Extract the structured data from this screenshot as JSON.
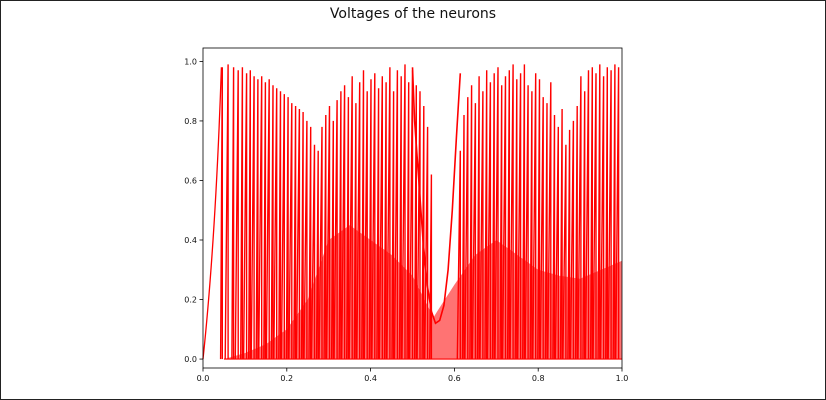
{
  "chart_data": {
    "type": "line",
    "title": "Voltages of the neurons",
    "xlabel": "",
    "ylabel": "",
    "xlim": [
      0.0,
      1.0
    ],
    "ylim": [
      -0.03,
      1.045
    ],
    "grid": false,
    "legend": "none",
    "x_ticks": [
      "0.0",
      "0.2",
      "0.4",
      "0.6",
      "0.8",
      "1.0"
    ],
    "y_ticks": [
      "0.0",
      "0.2",
      "0.4",
      "0.6",
      "0.8",
      "1.0"
    ],
    "series": [
      {
        "color": "#ff0000",
        "spike_times": [
          0.046,
          0.06,
          0.073,
          0.084,
          0.094,
          0.104,
          0.113,
          0.122,
          0.131,
          0.14,
          0.149,
          0.158,
          0.167,
          0.176,
          0.185,
          0.194,
          0.203,
          0.212,
          0.221,
          0.23,
          0.239,
          0.248,
          0.257,
          0.266,
          0.275,
          0.284,
          0.293,
          0.302,
          0.311,
          0.32,
          0.329,
          0.338,
          0.347,
          0.356,
          0.365,
          0.374,
          0.383,
          0.392,
          0.401,
          0.41,
          0.419,
          0.428,
          0.437,
          0.446,
          0.455,
          0.464,
          0.473,
          0.482,
          0.491,
          0.5,
          0.509,
          0.518,
          0.527,
          0.536,
          0.545,
          0.614,
          0.623,
          0.632,
          0.641,
          0.65,
          0.659,
          0.668,
          0.677,
          0.686,
          0.695,
          0.704,
          0.713,
          0.722,
          0.731,
          0.74,
          0.749,
          0.758,
          0.767,
          0.776,
          0.785,
          0.794,
          0.803,
          0.812,
          0.821,
          0.83,
          0.839,
          0.848,
          0.857,
          0.866,
          0.875,
          0.884,
          0.893,
          0.902,
          0.911,
          0.92,
          0.929,
          0.938,
          0.947,
          0.956,
          0.965,
          0.974,
          0.983,
          0.992
        ],
        "spike_peaks": [
          0.98,
          0.99,
          0.98,
          0.97,
          0.98,
          0.96,
          0.97,
          0.95,
          0.94,
          0.95,
          0.93,
          0.94,
          0.92,
          0.91,
          0.9,
          0.89,
          0.88,
          0.86,
          0.85,
          0.84,
          0.83,
          0.8,
          0.78,
          0.72,
          0.7,
          0.78,
          0.82,
          0.85,
          0.8,
          0.87,
          0.9,
          0.92,
          0.88,
          0.95,
          0.86,
          0.93,
          0.97,
          0.9,
          0.94,
          0.96,
          0.91,
          0.95,
          0.93,
          0.98,
          0.9,
          0.97,
          0.95,
          0.99,
          0.93,
          0.97,
          0.92,
          0.9,
          0.85,
          0.78,
          0.62,
          0.7,
          0.82,
          0.88,
          0.92,
          0.86,
          0.95,
          0.9,
          0.97,
          0.93,
          0.96,
          0.98,
          0.92,
          0.95,
          0.97,
          0.99,
          0.94,
          0.96,
          0.99,
          0.92,
          0.9,
          0.96,
          0.94,
          0.88,
          0.86,
          0.93,
          0.82,
          0.78,
          0.84,
          0.72,
          0.77,
          0.8,
          0.85,
          0.95,
          0.9,
          0.97,
          0.98,
          0.96,
          0.99,
          0.95,
          0.98,
          0.97,
          0.99,
          0.98
        ],
        "envelope": [
          [
            0.0,
            0.0
          ],
          [
            0.02,
            0.31
          ],
          [
            0.044,
            0.98
          ],
          [
            0.05,
            0.0
          ],
          [
            0.1,
            0.02
          ],
          [
            0.15,
            0.05
          ],
          [
            0.2,
            0.1
          ],
          [
            0.25,
            0.2
          ],
          [
            0.28,
            0.32
          ],
          [
            0.3,
            0.4
          ],
          [
            0.35,
            0.45
          ],
          [
            0.4,
            0.4
          ],
          [
            0.45,
            0.35
          ],
          [
            0.5,
            0.28
          ],
          [
            0.55,
            0.14
          ],
          [
            0.6,
            0.25
          ],
          [
            0.65,
            0.35
          ],
          [
            0.7,
            0.4
          ],
          [
            0.75,
            0.35
          ],
          [
            0.8,
            0.3
          ],
          [
            0.85,
            0.28
          ],
          [
            0.9,
            0.27
          ],
          [
            0.95,
            0.3
          ],
          [
            1.0,
            0.33
          ]
        ],
        "smooth_dip": [
          [
            0.5,
            0.98
          ],
          [
            0.505,
            0.8
          ],
          [
            0.515,
            0.6
          ],
          [
            0.525,
            0.4
          ],
          [
            0.535,
            0.25
          ],
          [
            0.545,
            0.16
          ],
          [
            0.555,
            0.12
          ],
          [
            0.565,
            0.13
          ],
          [
            0.575,
            0.18
          ],
          [
            0.585,
            0.3
          ],
          [
            0.595,
            0.5
          ],
          [
            0.605,
            0.75
          ],
          [
            0.614,
            0.96
          ]
        ]
      }
    ]
  }
}
